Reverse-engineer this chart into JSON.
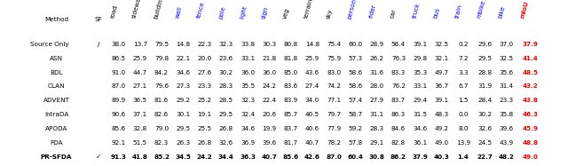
{
  "headers": [
    "Method",
    "SF",
    "road",
    "sidewalk",
    "building",
    "wall",
    "fence",
    "pole",
    "light",
    "sign",
    "veg",
    "terrain",
    "sky",
    "person",
    "rider",
    "car",
    "truck",
    "bus",
    "train",
    "mbike",
    "bike",
    "mIoU"
  ],
  "header_colors": [
    "black",
    "black",
    "black",
    "black",
    "black",
    "blue",
    "blue",
    "blue",
    "blue",
    "blue",
    "black",
    "black",
    "black",
    "blue",
    "blue",
    "black",
    "blue",
    "blue",
    "blue",
    "blue",
    "blue",
    "red"
  ],
  "source_only": [
    "Source Only",
    "/",
    "38.0",
    "13.7",
    "79.5",
    "14.8",
    "22.3",
    "32.3",
    "33.8",
    "30.3",
    "80.8",
    "14.8",
    "75.4",
    "60.0",
    "28.9",
    "56.4",
    "39.1",
    "32.5",
    "0.2",
    "29.6",
    "37.0",
    "37.9"
  ],
  "rows": [
    [
      "ASN",
      "",
      "86.5",
      "25.9",
      "79.8",
      "22.1",
      "20.0",
      "23.6",
      "33.1",
      "21.8",
      "81.8",
      "25.9",
      "75.9",
      "57.3",
      "26.2",
      "76.3",
      "29.8",
      "32.1",
      "7.2",
      "29.5",
      "32.5",
      "41.4"
    ],
    [
      "BDL",
      "",
      "91.0",
      "44.7",
      "84.2",
      "34.6",
      "27.6",
      "30.2",
      "36.0",
      "36.0",
      "85.0",
      "43.6",
      "83.0",
      "58.6",
      "31.6",
      "83.3",
      "35.3",
      "49.7",
      "3.3",
      "28.8",
      "35.6",
      "48.5"
    ],
    [
      "CLAN",
      "",
      "87.0",
      "27.1",
      "79.6",
      "27.3",
      "23.3",
      "28.3",
      "35.5",
      "24.2",
      "83.6",
      "27.4",
      "74.2",
      "58.6",
      "28.0",
      "76.2",
      "33.1",
      "36.7",
      "6.7",
      "31.9",
      "31.4",
      "43.2"
    ],
    [
      "ADVENT",
      "",
      "89.9",
      "36.5",
      "81.6",
      "29.2",
      "25.2",
      "28.5",
      "32.3",
      "22.4",
      "83.9",
      "34.0",
      "77.1",
      "57.4",
      "27.9",
      "83.7",
      "29.4",
      "39.1",
      "1.5",
      "28.4",
      "23.3",
      "43.8"
    ],
    [
      "IntraDA",
      "",
      "90.6",
      "37.1",
      "82.6",
      "30.1",
      "19.1",
      "29.5",
      "32.4",
      "20.6",
      "85.7",
      "40.5",
      "79.7",
      "58.7",
      "31.1",
      "86.3",
      "31.5",
      "48.3",
      "0.0",
      "30.2",
      "35.8",
      "46.3"
    ],
    [
      "APODA",
      "",
      "85.6",
      "32.8",
      "79.0",
      "29.5",
      "25.5",
      "26.8",
      "34.6",
      "19.9",
      "83.7",
      "40.6",
      "77.9",
      "59.2",
      "28.3",
      "84.6",
      "34.6",
      "49.2",
      "8.0",
      "32.6",
      "39.6",
      "45.9"
    ],
    [
      "FDA",
      "",
      "92.1",
      "51.5",
      "82.3",
      "26.3",
      "26.8",
      "32.6",
      "36.9",
      "39.6",
      "81.7",
      "40.7",
      "78.2",
      "57.8",
      "29.1",
      "82.8",
      "36.1",
      "49.0",
      "13.9",
      "24.5",
      "43.9",
      "48.8"
    ],
    [
      "PR-SFDA",
      "✓",
      "91.3",
      "41.8",
      "85.2",
      "34.5",
      "24.2",
      "34.4",
      "36.3",
      "40.7",
      "85.6",
      "42.6",
      "87.0",
      "60.4",
      "30.8",
      "86.2",
      "37.9",
      "40.3",
      "1.4",
      "22.7",
      "48.2",
      "49.0"
    ]
  ],
  "figsize": [
    6.4,
    1.87
  ],
  "dpi": 100
}
